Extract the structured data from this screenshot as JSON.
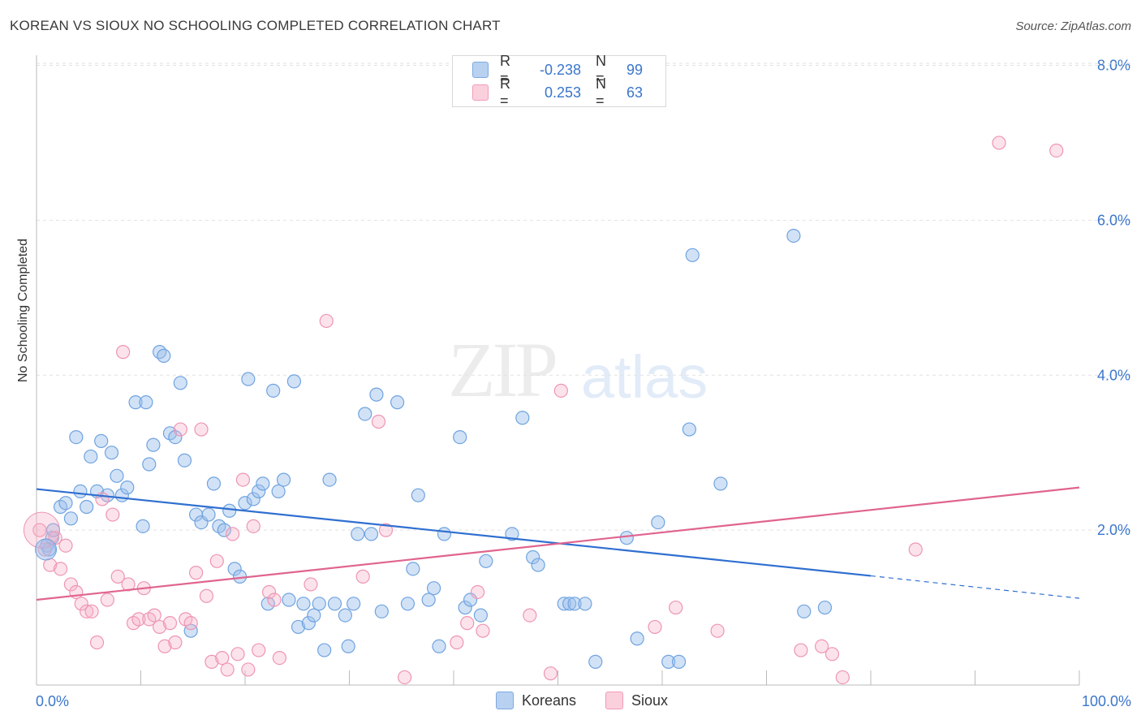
{
  "title": "KOREAN VS SIOUX NO SCHOOLING COMPLETED CORRELATION CHART",
  "source": "Source: ZipAtlas.com",
  "watermark": {
    "a": "ZIP",
    "b": "atlas"
  },
  "legend_stats": [
    {
      "r_label": "R =",
      "r_value": "-0.238",
      "n_label": "N =",
      "n_value": "99",
      "color": "#a9c8ee"
    },
    {
      "r_label": "R =",
      "r_value": "0.253",
      "n_label": "N =",
      "n_value": "63",
      "color": "#f7b9cb"
    }
  ],
  "chart_data": {
    "type": "scatter",
    "xlabel": "",
    "ylabel": "No Schooling Completed",
    "xlim": [
      0,
      100
    ],
    "ylim": [
      0,
      8.0
    ],
    "x_tick_labels": [
      "0.0%",
      "100.0%"
    ],
    "y_ticks": [
      2.0,
      4.0,
      6.0,
      8.0
    ],
    "y_tick_labels": [
      "2.0%",
      "4.0%",
      "6.0%",
      "8.0%"
    ],
    "grid": true,
    "legend_position": "bottom-center",
    "series": [
      {
        "name": "Koreans",
        "color": "#6fa3e0",
        "line_color": "#2f6fd0",
        "trend": {
          "x0": 0,
          "y0": 2.53,
          "x1": 80,
          "y1": 1.41,
          "dash_to_x": 100,
          "dash_to_y": 1.12
        },
        "points": [
          [
            1.0,
            1.8
          ],
          [
            1.2,
            1.75
          ],
          [
            1.5,
            1.9
          ],
          [
            1.6,
            2.0
          ],
          [
            2.3,
            2.3
          ],
          [
            2.8,
            2.35
          ],
          [
            3.3,
            2.15
          ],
          [
            3.8,
            3.2
          ],
          [
            4.2,
            2.5
          ],
          [
            4.8,
            2.3
          ],
          [
            5.2,
            2.95
          ],
          [
            5.8,
            2.5
          ],
          [
            6.2,
            3.15
          ],
          [
            6.8,
            2.45
          ],
          [
            7.2,
            3.0
          ],
          [
            7.7,
            2.7
          ],
          [
            8.2,
            2.45
          ],
          [
            8.7,
            2.55
          ],
          [
            9.5,
            3.65
          ],
          [
            10.2,
            2.05
          ],
          [
            10.5,
            3.65
          ],
          [
            10.8,
            2.85
          ],
          [
            11.2,
            3.1
          ],
          [
            11.8,
            4.3
          ],
          [
            12.2,
            4.25
          ],
          [
            12.8,
            3.25
          ],
          [
            13.3,
            3.2
          ],
          [
            13.8,
            3.9
          ],
          [
            14.2,
            2.9
          ],
          [
            14.8,
            0.7
          ],
          [
            15.3,
            2.2
          ],
          [
            15.8,
            2.1
          ],
          [
            16.5,
            2.2
          ],
          [
            17.0,
            2.6
          ],
          [
            17.5,
            2.05
          ],
          [
            18.0,
            2.0
          ],
          [
            18.5,
            2.25
          ],
          [
            19.0,
            1.5
          ],
          [
            19.5,
            1.4
          ],
          [
            20.0,
            2.35
          ],
          [
            20.3,
            3.95
          ],
          [
            20.8,
            2.4
          ],
          [
            21.3,
            2.5
          ],
          [
            21.7,
            2.6
          ],
          [
            22.2,
            1.05
          ],
          [
            22.7,
            3.8
          ],
          [
            23.2,
            2.5
          ],
          [
            23.7,
            2.65
          ],
          [
            24.2,
            1.1
          ],
          [
            24.7,
            3.92
          ],
          [
            25.1,
            0.75
          ],
          [
            25.6,
            1.05
          ],
          [
            26.1,
            0.8
          ],
          [
            26.6,
            0.9
          ],
          [
            27.1,
            1.05
          ],
          [
            27.6,
            0.45
          ],
          [
            28.1,
            2.65
          ],
          [
            28.6,
            1.05
          ],
          [
            29.6,
            0.9
          ],
          [
            29.9,
            0.5
          ],
          [
            30.4,
            1.05
          ],
          [
            30.8,
            1.95
          ],
          [
            31.5,
            3.5
          ],
          [
            32.1,
            1.95
          ],
          [
            32.6,
            3.75
          ],
          [
            33.1,
            0.95
          ],
          [
            34.6,
            3.65
          ],
          [
            35.6,
            1.05
          ],
          [
            36.1,
            1.5
          ],
          [
            36.6,
            2.45
          ],
          [
            37.6,
            1.1
          ],
          [
            38.1,
            1.25
          ],
          [
            38.6,
            0.5
          ],
          [
            39.1,
            1.95
          ],
          [
            40.6,
            3.2
          ],
          [
            41.1,
            1.0
          ],
          [
            41.6,
            1.1
          ],
          [
            42.6,
            0.9
          ],
          [
            43.1,
            1.6
          ],
          [
            45.6,
            1.95
          ],
          [
            46.6,
            3.45
          ],
          [
            47.6,
            1.65
          ],
          [
            48.1,
            1.55
          ],
          [
            50.6,
            1.05
          ],
          [
            51.1,
            1.05
          ],
          [
            51.6,
            1.05
          ],
          [
            52.6,
            1.05
          ],
          [
            53.6,
            0.3
          ],
          [
            56.6,
            1.9
          ],
          [
            57.6,
            0.6
          ],
          [
            59.6,
            2.1
          ],
          [
            60.6,
            0.3
          ],
          [
            61.6,
            0.3
          ],
          [
            62.6,
            3.3
          ],
          [
            62.9,
            5.55
          ],
          [
            65.6,
            2.6
          ],
          [
            72.6,
            5.8
          ],
          [
            73.6,
            0.95
          ],
          [
            75.6,
            1.0
          ]
        ]
      },
      {
        "name": "Sioux",
        "color": "#f18faf",
        "line_color": "#e0648f",
        "trend": {
          "x0": 0,
          "y0": 1.1,
          "x1": 100,
          "y1": 2.55
        },
        "points": [
          [
            0.3,
            2.0
          ],
          [
            0.8,
            1.75
          ],
          [
            1.3,
            1.55
          ],
          [
            1.8,
            1.9
          ],
          [
            2.3,
            1.5
          ],
          [
            2.8,
            1.8
          ],
          [
            3.3,
            1.3
          ],
          [
            3.8,
            1.2
          ],
          [
            4.3,
            1.05
          ],
          [
            4.8,
            0.95
          ],
          [
            5.3,
            0.95
          ],
          [
            5.8,
            0.55
          ],
          [
            6.3,
            2.4
          ],
          [
            6.8,
            1.1
          ],
          [
            7.3,
            2.2
          ],
          [
            7.8,
            1.4
          ],
          [
            8.3,
            4.3
          ],
          [
            8.8,
            1.3
          ],
          [
            9.3,
            0.8
          ],
          [
            9.8,
            0.85
          ],
          [
            10.3,
            1.25
          ],
          [
            10.8,
            0.85
          ],
          [
            11.3,
            0.9
          ],
          [
            11.8,
            0.75
          ],
          [
            12.3,
            0.5
          ],
          [
            12.8,
            0.8
          ],
          [
            13.3,
            0.55
          ],
          [
            13.8,
            3.3
          ],
          [
            14.3,
            0.85
          ],
          [
            14.8,
            0.8
          ],
          [
            15.3,
            1.45
          ],
          [
            15.8,
            3.3
          ],
          [
            16.3,
            1.15
          ],
          [
            16.8,
            0.3
          ],
          [
            17.3,
            1.6
          ],
          [
            17.8,
            0.35
          ],
          [
            18.3,
            0.2
          ],
          [
            18.8,
            1.95
          ],
          [
            19.3,
            0.4
          ],
          [
            19.8,
            2.65
          ],
          [
            20.3,
            0.2
          ],
          [
            20.8,
            2.05
          ],
          [
            21.3,
            0.45
          ],
          [
            22.3,
            1.2
          ],
          [
            22.8,
            1.1
          ],
          [
            23.3,
            0.35
          ],
          [
            26.3,
            1.3
          ],
          [
            27.8,
            4.7
          ],
          [
            31.3,
            1.4
          ],
          [
            32.8,
            3.4
          ],
          [
            33.5,
            2.0
          ],
          [
            35.3,
            0.1
          ],
          [
            40.3,
            0.55
          ],
          [
            41.3,
            0.8
          ],
          [
            42.3,
            1.2
          ],
          [
            42.8,
            0.7
          ],
          [
            47.3,
            0.9
          ],
          [
            49.3,
            0.15
          ],
          [
            50.3,
            3.8
          ],
          [
            59.3,
            0.75
          ],
          [
            61.3,
            1.0
          ],
          [
            65.3,
            0.7
          ],
          [
            73.3,
            0.45
          ]
        ]
      }
    ],
    "extra_points": {
      "Sioux": [
        [
          75.3,
          0.5
        ],
        [
          76.3,
          0.4
        ],
        [
          77.3,
          0.1
        ],
        [
          84.3,
          1.75
        ],
        [
          92.3,
          7.0
        ],
        [
          97.8,
          6.9
        ]
      ]
    }
  }
}
